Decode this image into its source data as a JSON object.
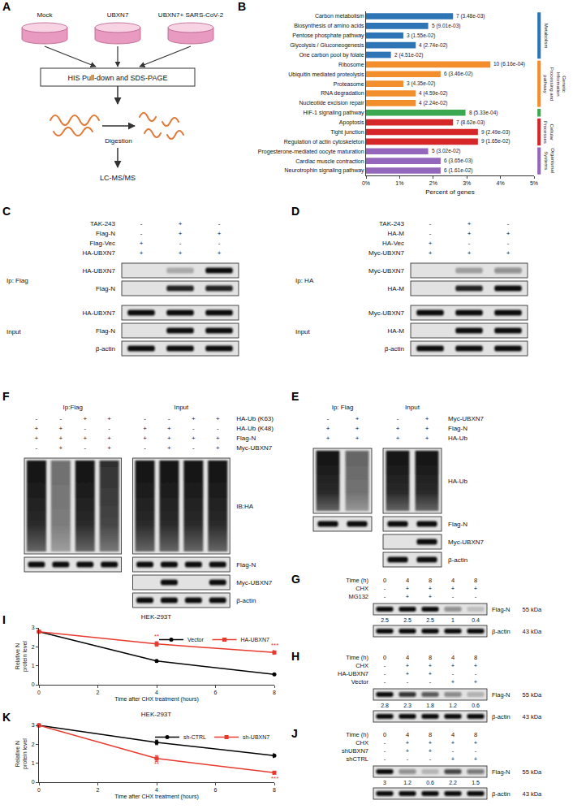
{
  "panel_letters": [
    "A",
    "B",
    "C",
    "D",
    "E",
    "F",
    "G",
    "H",
    "I",
    "J",
    "K"
  ],
  "diagram": {
    "groups": [
      "Mock",
      "UBXN7",
      "UBXN7+ SARS-CoV-2"
    ],
    "step1": "HIS Pull-down and SDS-PAGE",
    "step2": "Digestion",
    "step3": "LC-MS/MS"
  },
  "chart_data": [
    {
      "type": "bar",
      "orientation": "horizontal",
      "grid": false,
      "categories": [
        "Carbon metabolism",
        "Biosynthesis of amino acids",
        "Pentose phosphate pathway",
        "Glycolysis / Gluconeogenesis",
        "One carbon pool by folate",
        "Ribosome",
        "Ubiquitin mediated proteolysis",
        "Proteasome",
        "RNA degradation",
        "Nucleotide excision repair",
        "HIF-1 signaling pathway",
        "Apoptosis",
        "Tight junction",
        "Regulation of actin cytoskeleton",
        "Progesterone-mediated oocyte maturation",
        "Cardiac muscle contraction",
        "Neurotrophin signaling pathway"
      ],
      "series": [
        {
          "name": "Metabolism",
          "color": "#2e75b6",
          "values": [
            2.59,
            1.85,
            1.11,
            1.48,
            0.74,
            null,
            null,
            null,
            null,
            null,
            null,
            null,
            null,
            null,
            null,
            null,
            null
          ]
        },
        {
          "name": "Genetic Information Processing and pathway",
          "color": "#f28e2b",
          "values": [
            null,
            null,
            null,
            null,
            null,
            3.7,
            2.22,
            1.11,
            1.48,
            1.48,
            null,
            null,
            null,
            null,
            null,
            null,
            null
          ]
        },
        {
          "color": "#3ca951",
          "values": [
            null,
            null,
            null,
            null,
            null,
            null,
            null,
            null,
            null,
            null,
            2.96,
            null,
            null,
            null,
            null,
            null,
            null
          ]
        },
        {
          "name": "Cellular Processes",
          "color": "#d62728",
          "values": [
            null,
            null,
            null,
            null,
            null,
            null,
            null,
            null,
            null,
            null,
            null,
            2.59,
            3.33,
            3.33,
            null,
            null,
            null
          ]
        },
        {
          "name": "Organismal Systems",
          "color": "#9467bd",
          "values": [
            null,
            null,
            null,
            null,
            null,
            null,
            null,
            null,
            null,
            null,
            null,
            null,
            null,
            null,
            1.85,
            2.22,
            2.22
          ]
        }
      ],
      "annotations": [
        "7 (3.48e-03)",
        "5 (9.01e-03)",
        "3 (1.55e-02)",
        "4 (2.74e-02)",
        "2 (4.51e-02)",
        "10 (6.16e-04)",
        "6 (3.46e-02)",
        "3 (4.35e-02)",
        "4 (4.59e-02)",
        "4 (2.24e-02)",
        "8 (5.33e-04)",
        "7 (8.62e-03)",
        "9 (2.49e-03)",
        "9 (1.65e-02)",
        "5 (3.02e-02)",
        "6 (3.65e-03)",
        "6 (1.61e-02)"
      ],
      "xlabel": "Percent of genes",
      "xlim": [
        0,
        5
      ],
      "xticks": [
        {
          "value": 0,
          "label": "0%"
        },
        {
          "value": 1,
          "label": "1%"
        },
        {
          "value": 2,
          "label": "2%"
        },
        {
          "value": 3,
          "label": "3%"
        },
        {
          "value": 4,
          "label": "4%"
        },
        {
          "value": 5,
          "label": "5%"
        }
      ]
    },
    {
      "type": "line",
      "title": "HEK-293T",
      "xlabel": "Time after CHX treatment (hours)",
      "ylabel": "Relative N protein level",
      "x": [
        0,
        4,
        8
      ],
      "xlim": [
        0,
        8
      ],
      "xticks": [
        0,
        2,
        4,
        6,
        8
      ],
      "ylim": [
        0,
        3
      ],
      "yticks": [
        0,
        1,
        2,
        3
      ],
      "grid": false,
      "legend": "upper right",
      "series": [
        {
          "name": "Vector",
          "color": "#000000",
          "marker": "circle",
          "values": [
            2.8,
            1.25,
            0.55
          ],
          "errors": [
            0.05,
            0.06,
            0.05
          ],
          "significance": [
            null,
            null,
            null
          ]
        },
        {
          "name": "HA-UBXN7",
          "color": "#e8392e",
          "marker": "square",
          "values": [
            2.8,
            2.15,
            1.7
          ],
          "errors": [
            0.05,
            0.12,
            0.1
          ],
          "significance": [
            null,
            "**",
            "***"
          ]
        }
      ]
    },
    {
      "type": "line",
      "title": "HEK-293T",
      "xlabel": "Time after CHX treatment (hours)",
      "ylabel": "Relative N protein level",
      "x": [
        0,
        4,
        8
      ],
      "xlim": [
        0,
        8
      ],
      "xticks": [
        0,
        2,
        4,
        6,
        8
      ],
      "ylim": [
        0,
        3
      ],
      "yticks": [
        0,
        1,
        2,
        3
      ],
      "grid": false,
      "legend": "upper right",
      "series": [
        {
          "name": "sh-CTRL",
          "color": "#000000",
          "marker": "circle",
          "values": [
            3,
            2.1,
            1.4
          ],
          "errors": [
            0.05,
            0.12,
            0.1
          ],
          "significance": [
            null,
            null,
            null
          ]
        },
        {
          "name": "sh-UBXN7",
          "color": "#e8392e",
          "marker": "square",
          "values": [
            3,
            1.25,
            0.5
          ],
          "errors": [
            0.05,
            0.15,
            0.08
          ],
          "significance": [
            null,
            "**",
            "***"
          ]
        }
      ]
    }
  ],
  "blots": [
    {
      "conditions": [
        {
          "label": "TAK-243",
          "marks": [
            "-",
            "+",
            "-"
          ]
        },
        {
          "label": "Flag-N",
          "marks": [
            "-",
            "+",
            "+"
          ]
        },
        {
          "label": "Flag-Vec",
          "marks": [
            "+",
            "-",
            "-"
          ]
        },
        {
          "label": "HA-UBXN7",
          "marks": [
            "+",
            "+",
            "+"
          ]
        }
      ],
      "sections": [
        {
          "label": "Ip: Flag",
          "rows": [
            {
              "label": "HA-UBXN7",
              "bands": [
                0,
                0.25,
                1
              ]
            },
            {
              "label": "Flag-N",
              "bands": [
                0,
                0.9,
                0.9
              ]
            }
          ]
        },
        {
          "label": "Input",
          "rows": [
            {
              "label": "HA-UBXN7",
              "bands": [
                1,
                1,
                1
              ]
            },
            {
              "label": "Flag-N",
              "bands": [
                0,
                1,
                1
              ]
            },
            {
              "label": "β-actin",
              "bands": [
                1,
                1,
                1
              ]
            }
          ]
        }
      ]
    },
    {
      "conditions": [
        {
          "label": "TAK-243",
          "marks": [
            "-",
            "+",
            "-"
          ]
        },
        {
          "label": "HA-M",
          "marks": [
            "-",
            "+",
            "+"
          ]
        },
        {
          "label": "HA-Vec",
          "marks": [
            "+",
            "-",
            "-"
          ]
        },
        {
          "label": "Myc-UBXN7",
          "marks": [
            "+",
            "+",
            "+"
          ]
        }
      ],
      "sections": [
        {
          "label": "Ip: HA",
          "rows": [
            {
              "label": "Myc-UBXN7",
              "bands": [
                0,
                0.3,
                0.4
              ]
            },
            {
              "label": "HA-M",
              "bands": [
                0,
                0.9,
                1
              ]
            }
          ]
        },
        {
          "label": "Input",
          "rows": [
            {
              "label": "Myc-UBXN7",
              "bands": [
                1,
                1,
                1
              ]
            },
            {
              "label": "HA-M",
              "bands": [
                0,
                1,
                1
              ]
            },
            {
              "label": "β-actin",
              "bands": [
                1,
                1,
                1
              ]
            }
          ]
        }
      ]
    },
    {
      "groups": [
        "Ip: Flag",
        "Input"
      ],
      "conditions": [
        {
          "label": "Myc-UBXN7",
          "marks": [
            "-",
            "+",
            "-",
            "+"
          ]
        },
        {
          "label": "Flag-N",
          "marks": [
            "+",
            "+",
            "+",
            "+"
          ]
        },
        {
          "label": "HA-Ub",
          "marks": [
            "+",
            "+",
            "+",
            "+"
          ]
        }
      ],
      "rows": [
        {
          "label": "HA-Ub",
          "bands": [
            [
              1,
              0.6
            ],
            [
              1,
              1
            ]
          ]
        },
        {
          "label": "Flag-N",
          "bands": [
            [
              1,
              1
            ],
            [
              1,
              1
            ]
          ]
        },
        {
          "label": "Myc-UBXN7",
          "bands": [
            null,
            [
              0,
              1
            ]
          ]
        },
        {
          "label": "β-actin",
          "bands": [
            null,
            [
              1,
              1
            ]
          ]
        }
      ]
    },
    {
      "groups": [
        "Ip:Flag",
        "Input"
      ],
      "conditions": [
        {
          "label": "HA-Ub (K63)",
          "marks": [
            "-",
            "-",
            "+",
            "+",
            "-",
            "-",
            "+",
            "+"
          ]
        },
        {
          "label": "HA-Ub (K48)",
          "marks": [
            "+",
            "+",
            "-",
            "-",
            "+",
            "+",
            "-",
            "-"
          ]
        },
        {
          "label": "Flag-N",
          "marks": [
            "+",
            "+",
            "+",
            "+",
            "+",
            "+",
            "+",
            "+"
          ]
        },
        {
          "label": "Myc-UBXN7",
          "marks": [
            "-",
            "+",
            "-",
            "+",
            "-",
            "+",
            "-",
            "+"
          ]
        }
      ],
      "rows": [
        {
          "label": "IB:HA",
          "bands": [
            [
              1,
              0.55,
              1,
              0.85
            ],
            [
              1,
              1,
              1,
              1
            ]
          ]
        },
        {
          "label": "Flag-N",
          "bands": [
            [
              1,
              1,
              1,
              1
            ],
            [
              1,
              1,
              1,
              1
            ]
          ]
        },
        {
          "label": "Myc-UBXN7",
          "bands": [
            null,
            [
              0,
              1,
              0,
              1
            ]
          ]
        },
        {
          "label": "β-actin",
          "bands": [
            null,
            [
              1,
              1,
              1,
              1
            ]
          ]
        }
      ]
    },
    {
      "conditions": [
        {
          "label": "Time (h)",
          "marks": [
            0,
            4,
            8,
            4,
            8
          ]
        },
        {
          "label": "CHX",
          "marks": [
            "-",
            "+",
            "+",
            "+",
            "+"
          ]
        },
        {
          "label": "MG132",
          "marks": [
            "-",
            "+",
            "+",
            "-",
            "-"
          ]
        }
      ],
      "target": {
        "label": "Flag-N",
        "size": "55 kDa",
        "values": [
          2.5,
          2.5,
          2.5,
          1,
          0.4
        ]
      },
      "control": {
        "label": "β-actin",
        "size": "43 kDa",
        "bands": [
          1,
          1,
          1,
          1,
          1
        ]
      }
    },
    {
      "conditions": [
        {
          "label": "Time (h)",
          "marks": [
            0,
            4,
            8,
            4,
            8
          ]
        },
        {
          "label": "CHX",
          "marks": [
            "-",
            "+",
            "+",
            "+",
            "+"
          ]
        },
        {
          "label": "HA-UBXN7",
          "marks": [
            "-",
            "+",
            "+",
            "-",
            "-"
          ]
        },
        {
          "label": "Vector",
          "marks": [
            "-",
            "-",
            "-",
            "+",
            "+"
          ]
        }
      ],
      "target": {
        "label": "Flag-N",
        "size": "55 kDa",
        "values": [
          2.8,
          2.3,
          1.8,
          1.2,
          0.6
        ]
      },
      "control": {
        "label": "β-actin",
        "size": "43 kDa",
        "bands": [
          1,
          1,
          1,
          1,
          1
        ]
      }
    },
    {
      "conditions": [
        {
          "label": "Time (h)",
          "marks": [
            0,
            4,
            8,
            4,
            8
          ]
        },
        {
          "label": "CHX",
          "marks": [
            "-",
            "+",
            "+",
            "+",
            "+"
          ]
        },
        {
          "label": "shUBXN7",
          "marks": [
            "-",
            "+",
            "+",
            "-",
            "-"
          ]
        },
        {
          "label": "shCTRL",
          "marks": [
            "-",
            "-",
            "-",
            "+",
            "+"
          ]
        }
      ],
      "target": {
        "label": "Flag-N",
        "size": "55 kDa",
        "values": [
          3,
          1.2,
          0.6,
          2.2,
          1.5
        ]
      },
      "control": {
        "label": "β-actin",
        "size": "43 kDa",
        "bands": [
          1,
          1,
          1,
          1,
          1
        ]
      }
    }
  ]
}
